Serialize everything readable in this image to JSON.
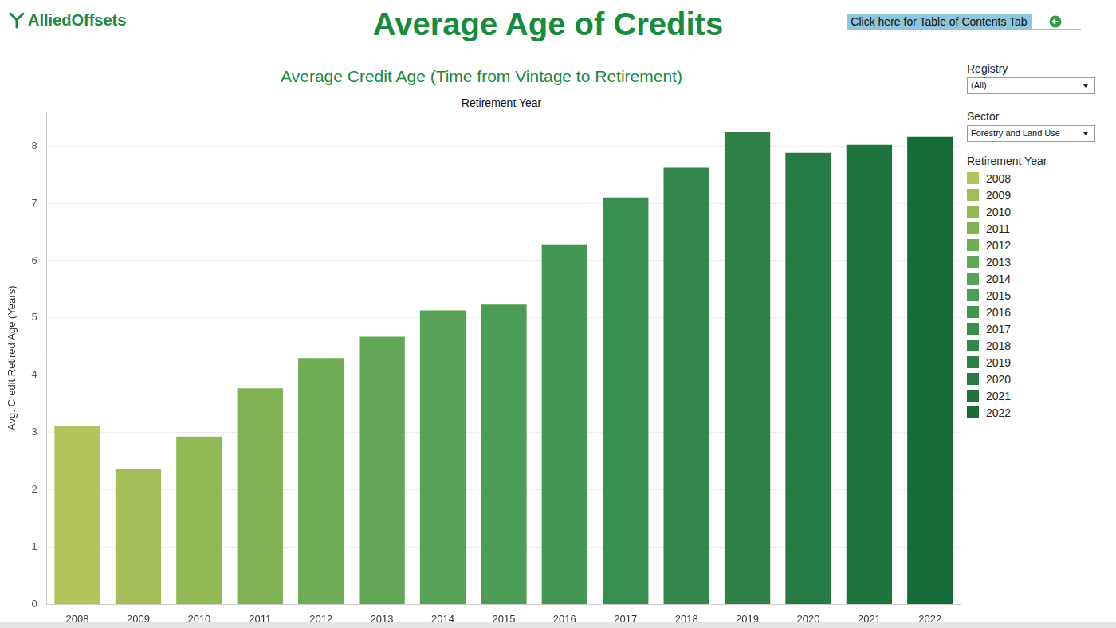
{
  "page": {
    "logo": "AlliedOffsets",
    "heading": "Average Age of Credits",
    "toc_button": "Click here for Table of Contents Tab",
    "filters": [
      {
        "label": "Registry",
        "value": "(All)"
      },
      {
        "label": "Sector",
        "value": "Forestry and Land Use"
      }
    ],
    "legend_title": "Retirement Year"
  },
  "chart_data": {
    "type": "bar",
    "title": "Average Credit Age (Time from Vintage to Retirement)",
    "x_label": "Retirement Year",
    "y_label": "Avg. Credit Retired Age (Years)",
    "categories": [
      "2008",
      "2009",
      "2010",
      "2011",
      "2012",
      "2013",
      "2014",
      "2015",
      "2016",
      "2017",
      "2018",
      "2019",
      "2020",
      "2021",
      "2022"
    ],
    "values": [
      3.11,
      2.37,
      2.93,
      3.77,
      4.3,
      4.67,
      5.13,
      5.23,
      6.28,
      7.1,
      7.62,
      8.24,
      7.88,
      8.02,
      8.16
    ],
    "colors": [
      "#b1c35b",
      "#a4bd58",
      "#92b856",
      "#82b153",
      "#70ab55",
      "#62a557",
      "#56a058",
      "#4c9b57",
      "#439554",
      "#3a8d50",
      "#34864c",
      "#2e7f48",
      "#287a44",
      "#1e733e",
      "#156c38"
    ],
    "ylim": [
      0,
      8.6
    ],
    "yticks": [
      0,
      1,
      2,
      3,
      4,
      5,
      6,
      7,
      8
    ],
    "grid": true,
    "legend": "right"
  }
}
